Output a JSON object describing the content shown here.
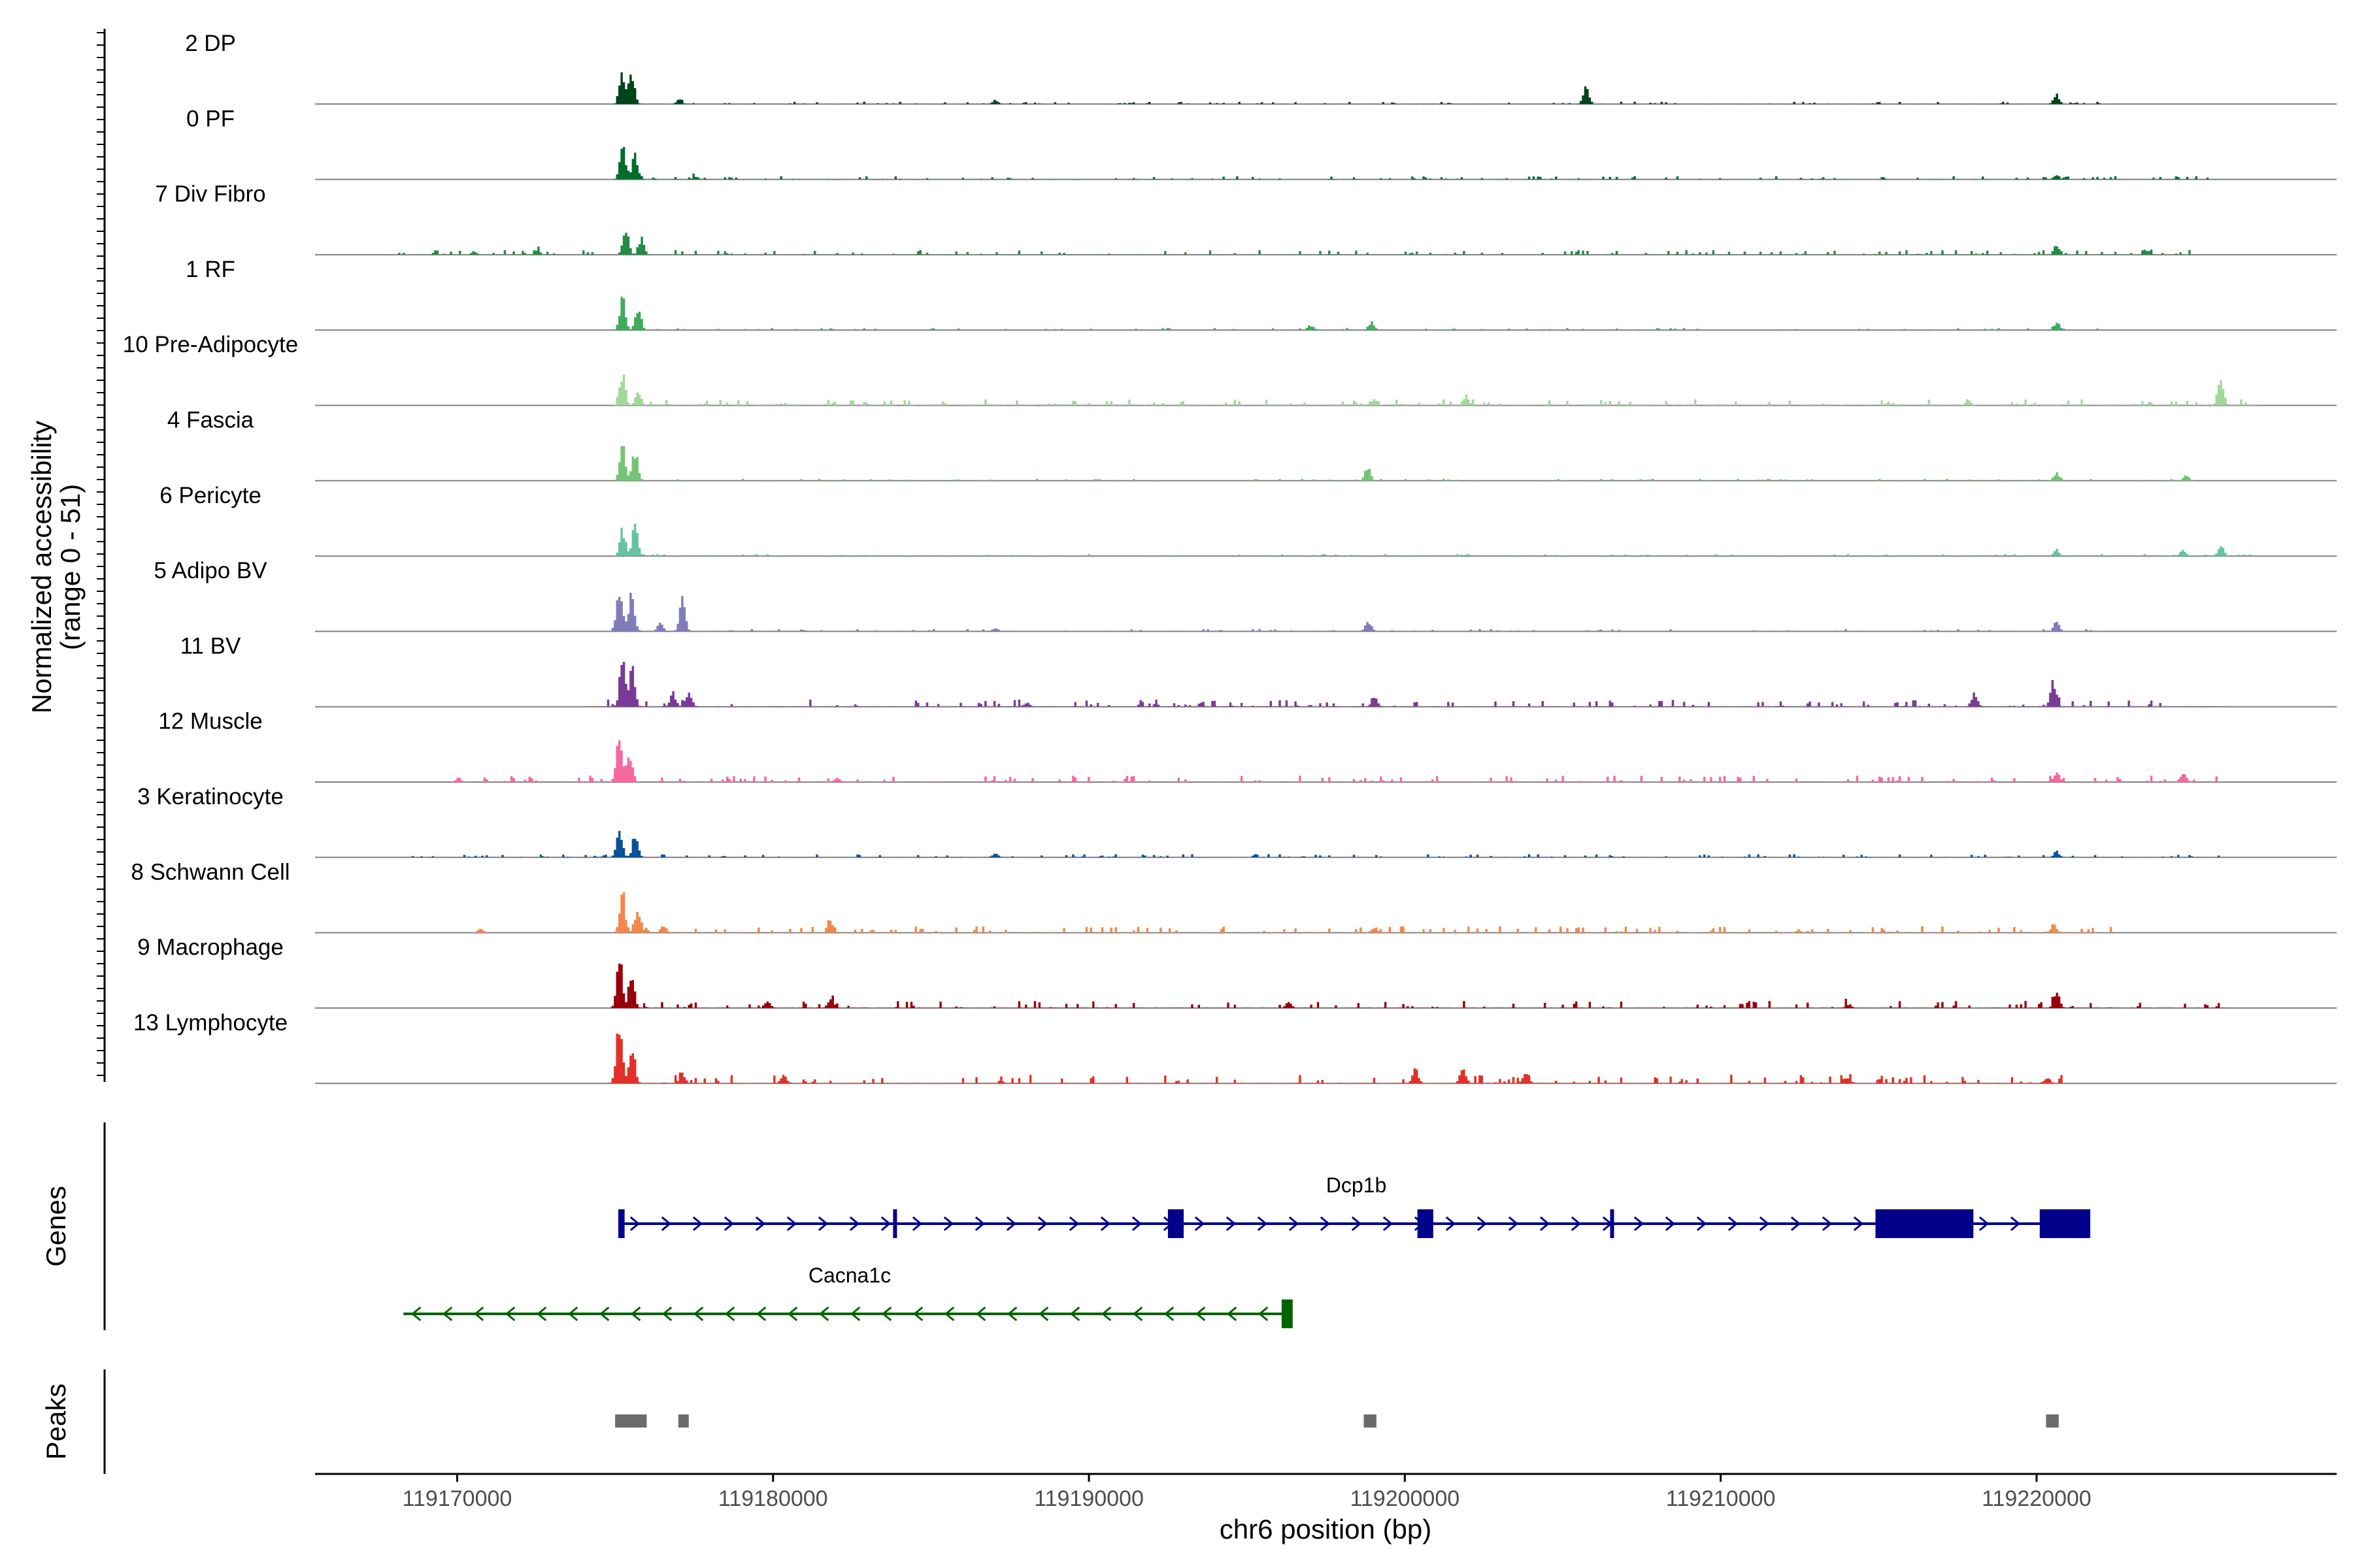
{
  "chart_data": {
    "type": "area",
    "title": "",
    "y_axis_label": "Normalized accessibility",
    "y_axis_range_label": "(range 0 - 51)",
    "ylim": [
      0,
      51
    ],
    "x_axis_label": "chr6 position (bp)",
    "xlim": [
      119165500,
      119229500
    ],
    "x_ticks": [
      {
        "value": 119170000,
        "label": "119170000"
      },
      {
        "value": 119180000,
        "label": "119180000"
      },
      {
        "value": 119190000,
        "label": "119190000"
      },
      {
        "value": 119200000,
        "label": "119200000"
      },
      {
        "value": 119210000,
        "label": "119210000"
      },
      {
        "value": 119220000,
        "label": "119220000"
      }
    ],
    "tracks": [
      {
        "name": "2 DP",
        "color": "#00441b",
        "peaks": [
          [
            119175200,
            17
          ],
          [
            119175500,
            17
          ],
          [
            119177000,
            2
          ],
          [
            119187000,
            2
          ],
          [
            119205700,
            8
          ],
          [
            119220600,
            5
          ]
        ],
        "noise": [
          119175000,
          119222000,
          0.6
        ]
      },
      {
        "name": "0 PF",
        "color": "#006d2c",
        "peaks": [
          [
            119175200,
            16
          ],
          [
            119175600,
            13
          ],
          [
            119177500,
            1.5
          ],
          [
            119220600,
            2.5
          ]
        ],
        "noise": [
          119175000,
          119226000,
          0.8
        ]
      },
      {
        "name": "7 Div Fibro",
        "color": "#238b45",
        "peaks": [
          [
            119175300,
            14
          ],
          [
            119175800,
            8
          ],
          [
            119170500,
            2
          ],
          [
            119172500,
            2
          ],
          [
            119220600,
            5
          ],
          [
            119223500,
            2
          ]
        ],
        "noise": [
          119168000,
          119225000,
          1.2
        ]
      },
      {
        "name": "1 RF",
        "color": "#41ab5d",
        "peaks": [
          [
            119175200,
            17
          ],
          [
            119175700,
            12
          ],
          [
            119197000,
            2
          ],
          [
            119198900,
            4
          ],
          [
            119220600,
            4
          ]
        ],
        "noise": [
          119175000,
          119222000,
          0.5
        ]
      },
      {
        "name": "10 Pre-Adipocyte",
        "color": "#a1d99b",
        "peaks": [
          [
            119175200,
            16
          ],
          [
            119175700,
            7
          ],
          [
            119199000,
            3
          ],
          [
            119201900,
            5
          ],
          [
            119225800,
            13
          ],
          [
            119217800,
            3
          ]
        ],
        "noise": [
          119175000,
          119227000,
          1.5
        ]
      },
      {
        "name": "4 Fascia",
        "color": "#74c476",
        "peaks": [
          [
            119175200,
            17
          ],
          [
            119175600,
            15
          ],
          [
            119198800,
            8
          ],
          [
            119220600,
            4
          ],
          [
            119224700,
            3
          ]
        ],
        "noise": [
          119175000,
          119225000,
          0.5
        ]
      },
      {
        "name": "6 Pericyte",
        "color": "#66c2a4",
        "peaks": [
          [
            119175200,
            14
          ],
          [
            119175600,
            17
          ],
          [
            119220600,
            3
          ],
          [
            119224600,
            3
          ],
          [
            119225800,
            5
          ]
        ],
        "noise": [
          119175000,
          119227000,
          0.5
        ]
      },
      {
        "name": "5 Adipo BV",
        "color": "#807dba",
        "peaks": [
          [
            119175100,
            25
          ],
          [
            119175500,
            20
          ],
          [
            119176400,
            5
          ],
          [
            119177100,
            18
          ],
          [
            119198800,
            5
          ],
          [
            119220600,
            5
          ],
          [
            119187000,
            2
          ]
        ],
        "noise": [
          119175000,
          119222000,
          0.6
        ]
      },
      {
        "name": "11 BV",
        "color": "#7a3a96",
        "peaks": [
          [
            119175200,
            23
          ],
          [
            119175500,
            20
          ],
          [
            119176800,
            7
          ],
          [
            119177300,
            8
          ],
          [
            119199000,
            5
          ],
          [
            119220500,
            12
          ],
          [
            119218000,
            7
          ],
          [
            119188000,
            2
          ]
        ],
        "noise": [
          119174000,
          119226000,
          1.8
        ]
      },
      {
        "name": "12 Muscle",
        "color": "#f768a1",
        "peaks": [
          [
            119175100,
            25
          ],
          [
            119175400,
            14
          ],
          [
            119220600,
            5
          ],
          [
            119224600,
            5
          ],
          [
            119170000,
            2
          ],
          [
            119182000,
            2
          ]
        ],
        "noise": [
          119170000,
          119226000,
          1.6
        ]
      },
      {
        "name": "3 Keratinocyte",
        "color": "#08519c",
        "peaks": [
          [
            119175100,
            15
          ],
          [
            119175600,
            10
          ],
          [
            119220600,
            3
          ],
          [
            119187000,
            2
          ]
        ],
        "noise": [
          119168000,
          119226000,
          0.8
        ]
      },
      {
        "name": "8 Schwann Cell",
        "color": "#f4874b",
        "peaks": [
          [
            119175200,
            20
          ],
          [
            119175700,
            12
          ],
          [
            119176500,
            4
          ],
          [
            119181800,
            6
          ],
          [
            119199000,
            3
          ],
          [
            119220500,
            4
          ],
          [
            119170700,
            2
          ]
        ],
        "noise": [
          119175000,
          119222500,
          1.6
        ]
      },
      {
        "name": "9 Macrophage",
        "color": "#99000d",
        "peaks": [
          [
            119175100,
            27
          ],
          [
            119175500,
            15
          ],
          [
            119181800,
            5
          ],
          [
            119179800,
            4
          ],
          [
            119196300,
            3
          ],
          [
            119220600,
            8
          ],
          [
            119214000,
            2
          ]
        ],
        "noise": [
          119175000,
          119226000,
          1.8
        ]
      },
      {
        "name": "13 Lymphocyte",
        "color": "#e32f27",
        "peaks": [
          [
            119175100,
            33
          ],
          [
            119175500,
            18
          ],
          [
            119177100,
            5
          ],
          [
            119203800,
            7
          ],
          [
            119201800,
            8
          ],
          [
            119200300,
            7
          ],
          [
            119180300,
            4
          ],
          [
            119214000,
            3
          ],
          [
            119220300,
            3
          ]
        ],
        "noise": [
          119174700,
          119221000,
          2.2
        ]
      }
    ],
    "genes_label": "Genes",
    "genes": [
      {
        "name": "Dcp1b",
        "strand": "+",
        "color": "#00008b",
        "start": 119175200,
        "end": 119221600,
        "exons": [
          [
            119175100,
            119175300
          ],
          [
            119183800,
            119183900
          ],
          [
            119192500,
            119193000
          ],
          [
            119200400,
            119200900
          ],
          [
            119206500,
            119206600
          ],
          [
            119214900,
            119218000
          ],
          [
            119220100,
            119221700
          ]
        ]
      },
      {
        "name": "Cacna1c",
        "strand": "-",
        "color": "#006400",
        "start": 119168300,
        "end": 119196400,
        "exons": [
          [
            119196100,
            119196450
          ]
        ]
      }
    ],
    "peaks_label": "Peaks",
    "called_peaks": [
      [
        119175000,
        119176000
      ],
      [
        119177000,
        119177300
      ],
      [
        119198700,
        119199100
      ],
      [
        119220300,
        119220700
      ]
    ]
  }
}
